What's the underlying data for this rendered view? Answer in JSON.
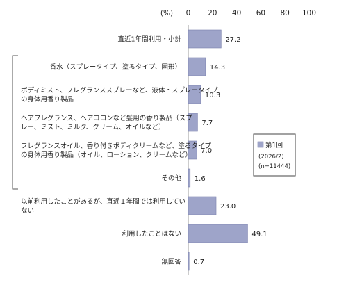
{
  "chart_data": {
    "type": "bar",
    "orientation": "horizontal",
    "unit": "(%)",
    "xlim": [
      0,
      100
    ],
    "ticks": [
      "0",
      "20",
      "40",
      "60",
      "80",
      "100"
    ],
    "bar_color": "#9ea4c9",
    "bar_edge_color": "#7a80ad",
    "categories": [
      [
        "直近1年間利用・小計"
      ],
      [
        "香水（スプレータイプ、塗るタイプ、固形）"
      ],
      [
        "ボディミスト、フレグランススプレーなど、液体・スプレータイプ",
        "の身体用香り製品"
      ],
      [
        "ヘアフレグランス、ヘアコロンなど髪用の香り製品（スプ",
        "レー、ミスト、ミルク、クリーム、オイルなど）"
      ],
      [
        "フレグランスオイル、香り付きボディクリームなど、塗るタイプ",
        "の身体用香り製品（オイル、ローション、クリームなど）"
      ],
      [
        "その他"
      ],
      [
        "以前利用したことがあるが、直近１年間では利用してい",
        "ない"
      ],
      [
        "利用したことはない"
      ],
      [
        "無回答"
      ]
    ],
    "values": [
      27.2,
      14.3,
      10.3,
      7.7,
      7.0,
      1.6,
      23.0,
      49.1,
      0.7
    ],
    "value_labels": [
      "27.2",
      "14.3",
      "10.3",
      "7.7",
      "7.0",
      "1.6",
      "23.0",
      "49.1",
      "0.7"
    ],
    "bracket_group": [
      1,
      5
    ],
    "legend": {
      "series_name": "第1回",
      "date": "(2026/2)",
      "n": "(n=11444)"
    }
  }
}
